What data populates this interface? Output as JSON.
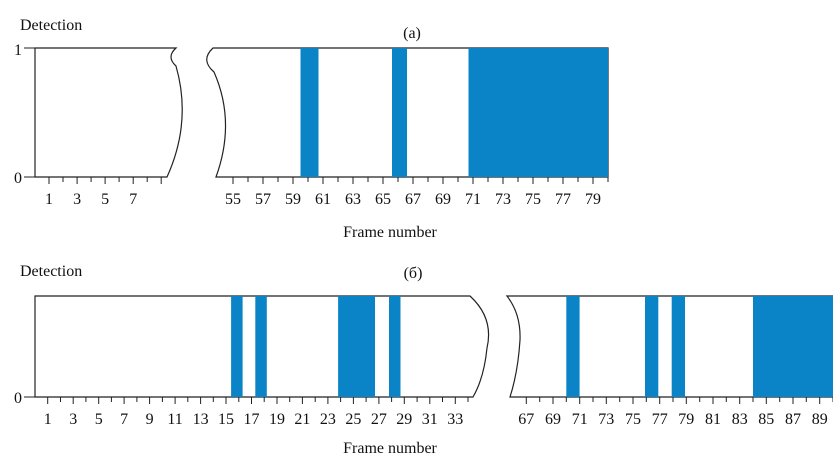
{
  "colors": {
    "bar": "#0a84c6",
    "line": "#222222"
  },
  "chart_data": [
    {
      "type": "bar",
      "title": "(a)",
      "ylabel": "Detection",
      "xlabel": "Frame number",
      "yticks": [
        "0",
        "1"
      ],
      "ylim": [
        0,
        1
      ],
      "axis_break": "between frame 9 and frame 54",
      "segments": [
        {
          "xlim": [
            0,
            9.2
          ],
          "tick_labels": [
            "1",
            "3",
            "5",
            "7"
          ]
        },
        {
          "xlim": [
            54,
            80
          ],
          "tick_labels": [
            "55",
            "57",
            "59",
            "61",
            "63",
            "65",
            "67",
            "69",
            "71",
            "73",
            "75",
            "77",
            "79"
          ]
        }
      ],
      "detections": [
        {
          "start": 59.5,
          "end": 60.7,
          "value": 1
        },
        {
          "start": 65.6,
          "end": 66.6,
          "value": 1
        },
        {
          "start": 70.7,
          "end": 80,
          "value": 1
        }
      ]
    },
    {
      "type": "bar",
      "title": "(б)",
      "ylabel": "Detection",
      "xlabel": "Frame number",
      "yticks": [
        "0"
      ],
      "ylim": [
        0,
        1
      ],
      "axis_break": "between frame 33 and frame 66",
      "segments": [
        {
          "xlim": [
            0,
            34
          ],
          "tick_labels": [
            "1",
            "3",
            "5",
            "7",
            "9",
            "11",
            "13",
            "15",
            "17",
            "19",
            "21",
            "23",
            "25",
            "27",
            "29",
            "31",
            "33"
          ]
        },
        {
          "xlim": [
            66,
            90
          ],
          "tick_labels": [
            "67",
            "69",
            "71",
            "73",
            "75",
            "77",
            "79",
            "81",
            "83",
            "85",
            "87",
            "89"
          ]
        }
      ],
      "detections": [
        {
          "start": 15.4,
          "end": 16.3,
          "value": 1
        },
        {
          "start": 17.3,
          "end": 18.2,
          "value": 1
        },
        {
          "start": 23.8,
          "end": 26.7,
          "value": 1
        },
        {
          "start": 27.8,
          "end": 28.7,
          "value": 1
        },
        {
          "start": 70.0,
          "end": 71.0,
          "value": 1
        },
        {
          "start": 75.9,
          "end": 76.9,
          "value": 1
        },
        {
          "start": 77.9,
          "end": 78.9,
          "value": 1
        },
        {
          "start": 84,
          "end": 90,
          "value": 1
        }
      ]
    }
  ]
}
